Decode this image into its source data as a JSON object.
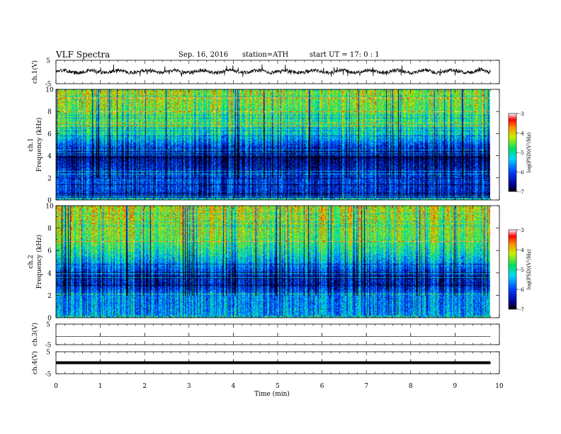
{
  "header": {
    "title": "VLF  Spectra",
    "date": "Sep. 16,  2016",
    "station": "station=ATH",
    "start": "start  UT  =    17: 0  : 1"
  },
  "chart_data": [
    {
      "type": "line",
      "name": "ch1_waveform",
      "ylabel": "ch.1(V)",
      "ylim": [
        -5,
        5
      ],
      "yticks": [
        "5",
        "-5"
      ],
      "xlim": [
        0,
        10
      ],
      "x_end": 9.8,
      "baseline": 0.2,
      "color": "#000000"
    },
    {
      "type": "heatmap",
      "name": "ch1_spectrogram",
      "ylabel_channel": "ch.1",
      "ylabel": "Frequency  (kHz)",
      "ylim": [
        0,
        10
      ],
      "yticks": [
        "0",
        "2",
        "4",
        "6",
        "8",
        "10"
      ],
      "xlim": [
        0,
        10
      ],
      "x_end": 9.8,
      "colorbar": {
        "label": "log(PSD)(V²/Hz)",
        "range": [
          -7,
          -3
        ],
        "ticks": [
          "-3",
          "-4",
          "-5",
          "-6",
          "-7"
        ]
      },
      "level_profile": [
        {
          "f": 0.2,
          "v": -6.3
        },
        {
          "f": 1.0,
          "v": -6.2
        },
        {
          "f": 2.0,
          "v": -6.1
        },
        {
          "f": 3.0,
          "v": -6.4
        },
        {
          "f": 4.0,
          "v": -6.7
        },
        {
          "f": 5.0,
          "v": -6.0
        },
        {
          "f": 6.0,
          "v": -5.1
        },
        {
          "f": 7.0,
          "v": -4.8
        },
        {
          "f": 8.0,
          "v": -4.6
        },
        {
          "f": 9.0,
          "v": -4.4
        },
        {
          "f": 10.0,
          "v": -4.3
        }
      ]
    },
    {
      "type": "heatmap",
      "name": "ch2_spectrogram",
      "ylabel_channel": "ch.2",
      "ylabel": "Frequency  (kHz)",
      "ylim": [
        0,
        10
      ],
      "yticks": [
        "0",
        "2",
        "4",
        "6",
        "8",
        "10"
      ],
      "xlim": [
        0,
        10
      ],
      "x_end": 9.8,
      "colorbar": {
        "label": "log(PSD)(V²/Hz)",
        "range": [
          -7,
          -3
        ],
        "ticks": [
          "-3",
          "-4",
          "-5",
          "-6",
          "-7"
        ]
      },
      "level_profile": [
        {
          "f": 0.2,
          "v": -5.6
        },
        {
          "f": 1.0,
          "v": -5.7
        },
        {
          "f": 2.0,
          "v": -5.7
        },
        {
          "f": 3.0,
          "v": -6.4
        },
        {
          "f": 4.0,
          "v": -6.2
        },
        {
          "f": 5.0,
          "v": -5.5
        },
        {
          "f": 6.0,
          "v": -5.0
        },
        {
          "f": 7.0,
          "v": -4.6
        },
        {
          "f": 8.0,
          "v": -4.4
        },
        {
          "f": 9.0,
          "v": -4.3
        },
        {
          "f": 10.0,
          "v": -4.2
        }
      ]
    },
    {
      "type": "line",
      "name": "ch3_waveform",
      "ylabel": "ch.3(V)",
      "ylim": [
        -5,
        5
      ],
      "yticks": [
        "5",
        "-5"
      ],
      "xlim": [
        0,
        10
      ],
      "x_end": 9.8,
      "baseline": -1.0,
      "spike_times": [
        1,
        2,
        3,
        4,
        5,
        6,
        7,
        8,
        9
      ],
      "color": "#000000"
    },
    {
      "type": "line",
      "name": "ch4_waveform",
      "ylabel": "ch.4(V)",
      "ylim": [
        -5,
        5
      ],
      "yticks": [
        "5",
        "-5"
      ],
      "xlim": [
        0,
        10
      ],
      "x_end": 9.8,
      "baseline": 0.0,
      "spike_times": [
        1,
        2,
        3,
        4,
        5,
        6,
        7,
        8,
        9
      ],
      "color": "#000000"
    }
  ],
  "xaxis": {
    "label": "Time  (min)",
    "ticks": [
      "0",
      "1",
      "2",
      "3",
      "4",
      "5",
      "6",
      "7",
      "8",
      "9",
      "10"
    ]
  }
}
